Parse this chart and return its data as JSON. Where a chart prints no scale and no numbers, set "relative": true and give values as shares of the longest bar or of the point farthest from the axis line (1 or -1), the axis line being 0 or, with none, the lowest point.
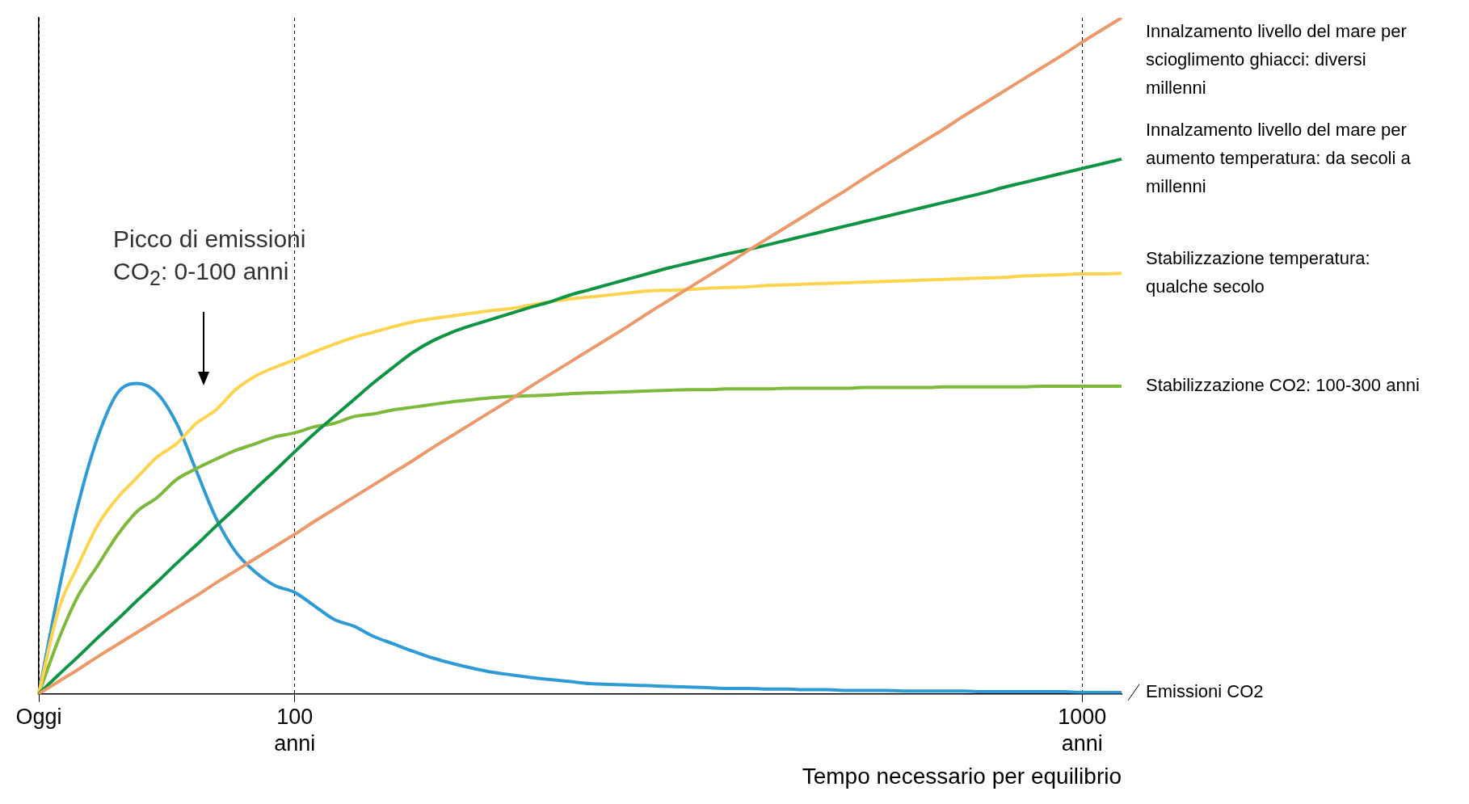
{
  "chart_data": {
    "type": "line",
    "relative": true,
    "xlabel": "Tempo necessario per equilibrio",
    "grid": "x",
    "legend": false,
    "marker": "none",
    "line_style": "solid",
    "categories": [
      "Oggi",
      null,
      null,
      null,
      null,
      null,
      null,
      null,
      null,
      null,
      null,
      null,
      null,
      "100 anni",
      null,
      null,
      null,
      null,
      null,
      null,
      null,
      null,
      null,
      null,
      null,
      null,
      null,
      null,
      null,
      null,
      null,
      null,
      null,
      null,
      null,
      null,
      null,
      null,
      null,
      null,
      null,
      null,
      null,
      null,
      null,
      null,
      null,
      null,
      null,
      null,
      null,
      null,
      null,
      "1000 anni",
      null,
      null
    ],
    "series": [
      {
        "name": "Innalzamento livello del mare per scioglimento ghiacci: diversi millenni",
        "color": "#ec9a6a",
        "values": [
          0,
          0.018,
          0.036,
          0.055,
          0.073,
          0.091,
          0.109,
          0.127,
          0.145,
          0.164,
          0.182,
          0.2,
          0.218,
          0.236,
          0.255,
          0.273,
          0.291,
          0.309,
          0.327,
          0.345,
          0.364,
          0.382,
          0.4,
          0.418,
          0.436,
          0.455,
          0.473,
          0.491,
          0.509,
          0.527,
          0.545,
          0.564,
          0.582,
          0.6,
          0.618,
          0.636,
          0.655,
          0.673,
          0.691,
          0.709,
          0.727,
          0.745,
          0.764,
          0.782,
          0.8,
          0.818,
          0.836,
          0.855,
          0.873,
          0.891,
          0.909,
          0.927,
          0.945,
          0.964,
          0.982,
          1
        ]
      },
      {
        "name": "Innalzamento livello del mare per aumento temperatura: da secoli a millenni",
        "color": "#0f9444",
        "values": [
          0,
          0.028,
          0.055,
          0.083,
          0.11,
          0.138,
          0.165,
          0.193,
          0.22,
          0.248,
          0.275,
          0.303,
          0.33,
          0.358,
          0.385,
          0.41,
          0.435,
          0.46,
          0.483,
          0.505,
          0.522,
          0.535,
          0.545,
          0.554,
          0.563,
          0.572,
          0.58,
          0.59,
          0.598,
          0.606,
          0.614,
          0.622,
          0.63,
          0.637,
          0.644,
          0.651,
          0.657,
          0.664,
          0.671,
          0.678,
          0.685,
          0.692,
          0.699,
          0.706,
          0.713,
          0.72,
          0.727,
          0.734,
          0.741,
          0.749,
          0.756,
          0.763,
          0.77,
          0.777,
          0.784,
          0.791
        ]
      },
      {
        "name": "Stabilizzazione temperatura: qualche secolo",
        "color": "#ffd34e",
        "values": [
          0,
          0.124,
          0.19,
          0.25,
          0.29,
          0.32,
          0.35,
          0.37,
          0.4,
          0.42,
          0.45,
          0.47,
          0.483,
          0.494,
          0.506,
          0.517,
          0.527,
          0.535,
          0.543,
          0.55,
          0.555,
          0.559,
          0.563,
          0.567,
          0.57,
          0.575,
          0.58,
          0.584,
          0.587,
          0.59,
          0.593,
          0.596,
          0.597,
          0.598,
          0.6,
          0.601,
          0.602,
          0.604,
          0.605,
          0.606,
          0.607,
          0.608,
          0.609,
          0.61,
          0.611,
          0.612,
          0.613,
          0.614,
          0.615,
          0.616,
          0.618,
          0.619,
          0.62,
          0.621,
          0.621,
          0.622
        ]
      },
      {
        "name": "Stabilizzazione CO2: 100-300 anni",
        "color": "#7db93a",
        "values": [
          0,
          0.08,
          0.145,
          0.19,
          0.235,
          0.27,
          0.29,
          0.317,
          0.333,
          0.347,
          0.36,
          0.37,
          0.38,
          0.386,
          0.395,
          0.4,
          0.41,
          0.414,
          0.42,
          0.424,
          0.428,
          0.432,
          0.435,
          0.438,
          0.44,
          0.441,
          0.442,
          0.444,
          0.445,
          0.446,
          0.447,
          0.448,
          0.449,
          0.45,
          0.45,
          0.451,
          0.451,
          0.451,
          0.452,
          0.452,
          0.452,
          0.452,
          0.453,
          0.453,
          0.453,
          0.453,
          0.454,
          0.454,
          0.454,
          0.454,
          0.454,
          0.455,
          0.455,
          0.455,
          0.455,
          0.455
        ]
      },
      {
        "name": "Emissioni CO2",
        "color": "#2e9bd6",
        "values": [
          0,
          0.15,
          0.28,
          0.38,
          0.445,
          0.459,
          0.445,
          0.4,
          0.33,
          0.26,
          0.21,
          0.18,
          0.16,
          0.15,
          0.13,
          0.11,
          0.1,
          0.085,
          0.074,
          0.063,
          0.053,
          0.045,
          0.038,
          0.032,
          0.028,
          0.024,
          0.021,
          0.018,
          0.015,
          0.014,
          0.013,
          0.012,
          0.011,
          0.01,
          0.009,
          0.008,
          0.008,
          0.007,
          0.007,
          0.006,
          0.006,
          0.005,
          0.005,
          0.005,
          0.004,
          0.004,
          0.004,
          0.004,
          0.003,
          0.003,
          0.003,
          0.003,
          0.003,
          0.002,
          0.002,
          0.002
        ]
      }
    ],
    "annotations": [
      "Picco di emissioni CO$_{2}$: 0-100 anni"
    ]
  }
}
